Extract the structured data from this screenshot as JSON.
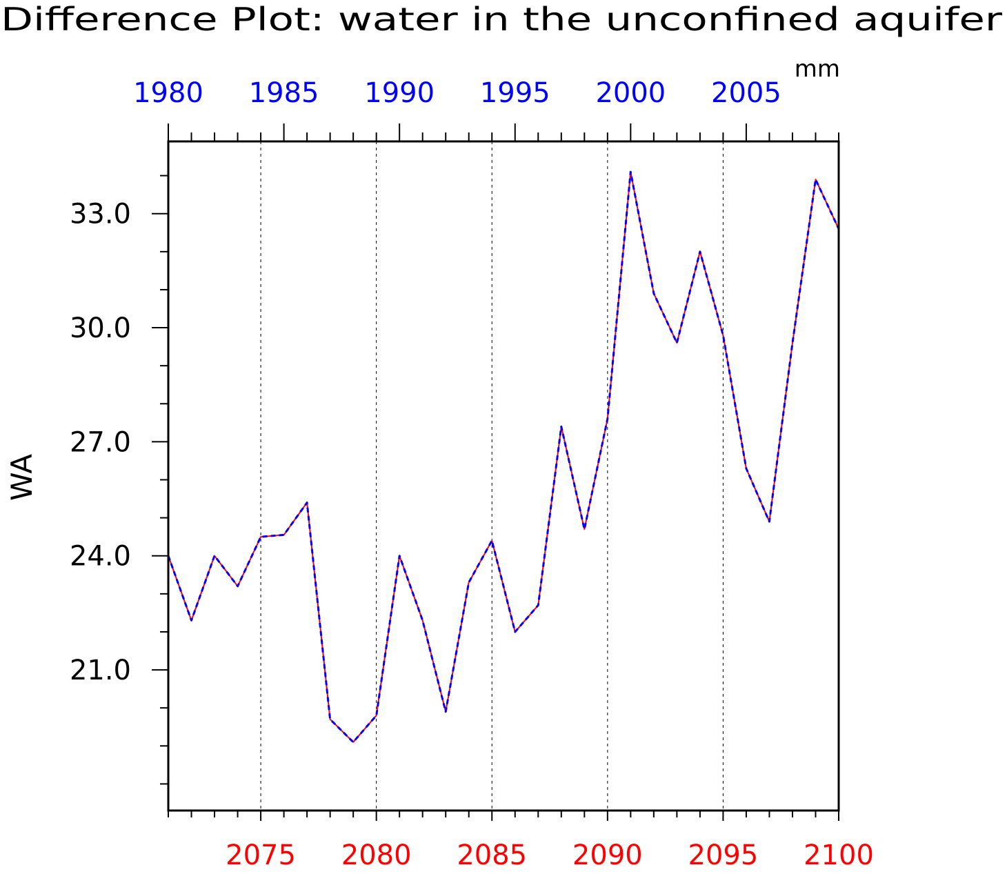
{
  "chart_data": {
    "type": "line",
    "title": "Difference Plot: water in the unconfined aquifer",
    "units": "mm",
    "ylabel": "WA",
    "ylim": [
      17.3,
      34.9
    ],
    "yticks": [
      "21.0",
      "24.0",
      "27.0",
      "30.0",
      "33.0"
    ],
    "bottom_axis": {
      "color": "#ff0000",
      "range": [
        2071,
        2100
      ],
      "tick_labels": [
        "2075",
        "2080",
        "2085",
        "2090",
        "2095",
        "2100"
      ]
    },
    "top_axis": {
      "color": "#0000ff",
      "range": [
        1980,
        2009
      ],
      "tick_labels": [
        "1980",
        "1985",
        "1990",
        "1995",
        "2000",
        "2005"
      ]
    },
    "grid": "vertical-dashed",
    "series": [
      {
        "color": "#ff0000",
        "style": "solid",
        "x": [
          2071,
          2072,
          2073,
          2074,
          2075,
          2076,
          2077,
          2078,
          2079,
          2080,
          2081,
          2082,
          2083,
          2084,
          2085,
          2086,
          2087,
          2088,
          2089,
          2090,
          2091,
          2092,
          2093,
          2094,
          2095,
          2096,
          2097,
          2098,
          2099,
          2100
        ],
        "values": [
          24.0,
          22.3,
          24.0,
          23.2,
          24.5,
          24.55,
          25.4,
          19.7,
          19.1,
          19.8,
          24.0,
          22.3,
          19.9,
          23.3,
          24.4,
          22.0,
          22.7,
          27.4,
          24.7,
          27.6,
          34.1,
          30.9,
          29.6,
          32.0,
          29.8,
          26.3,
          24.9,
          29.6,
          33.9,
          32.6
        ]
      },
      {
        "color": "#0000ff",
        "style": "dashed",
        "x": [
          2071,
          2072,
          2073,
          2074,
          2075,
          2076,
          2077,
          2078,
          2079,
          2080,
          2081,
          2082,
          2083,
          2084,
          2085,
          2086,
          2087,
          2088,
          2089,
          2090,
          2091,
          2092,
          2093,
          2094,
          2095,
          2096,
          2097,
          2098,
          2099,
          2100
        ],
        "values": [
          24.0,
          22.3,
          24.0,
          23.2,
          24.5,
          24.55,
          25.4,
          19.7,
          19.1,
          19.8,
          24.0,
          22.3,
          19.9,
          23.3,
          24.4,
          22.0,
          22.7,
          27.4,
          24.7,
          27.6,
          34.1,
          30.9,
          29.6,
          32.0,
          29.8,
          26.3,
          24.9,
          29.6,
          33.9,
          32.6
        ]
      }
    ]
  }
}
